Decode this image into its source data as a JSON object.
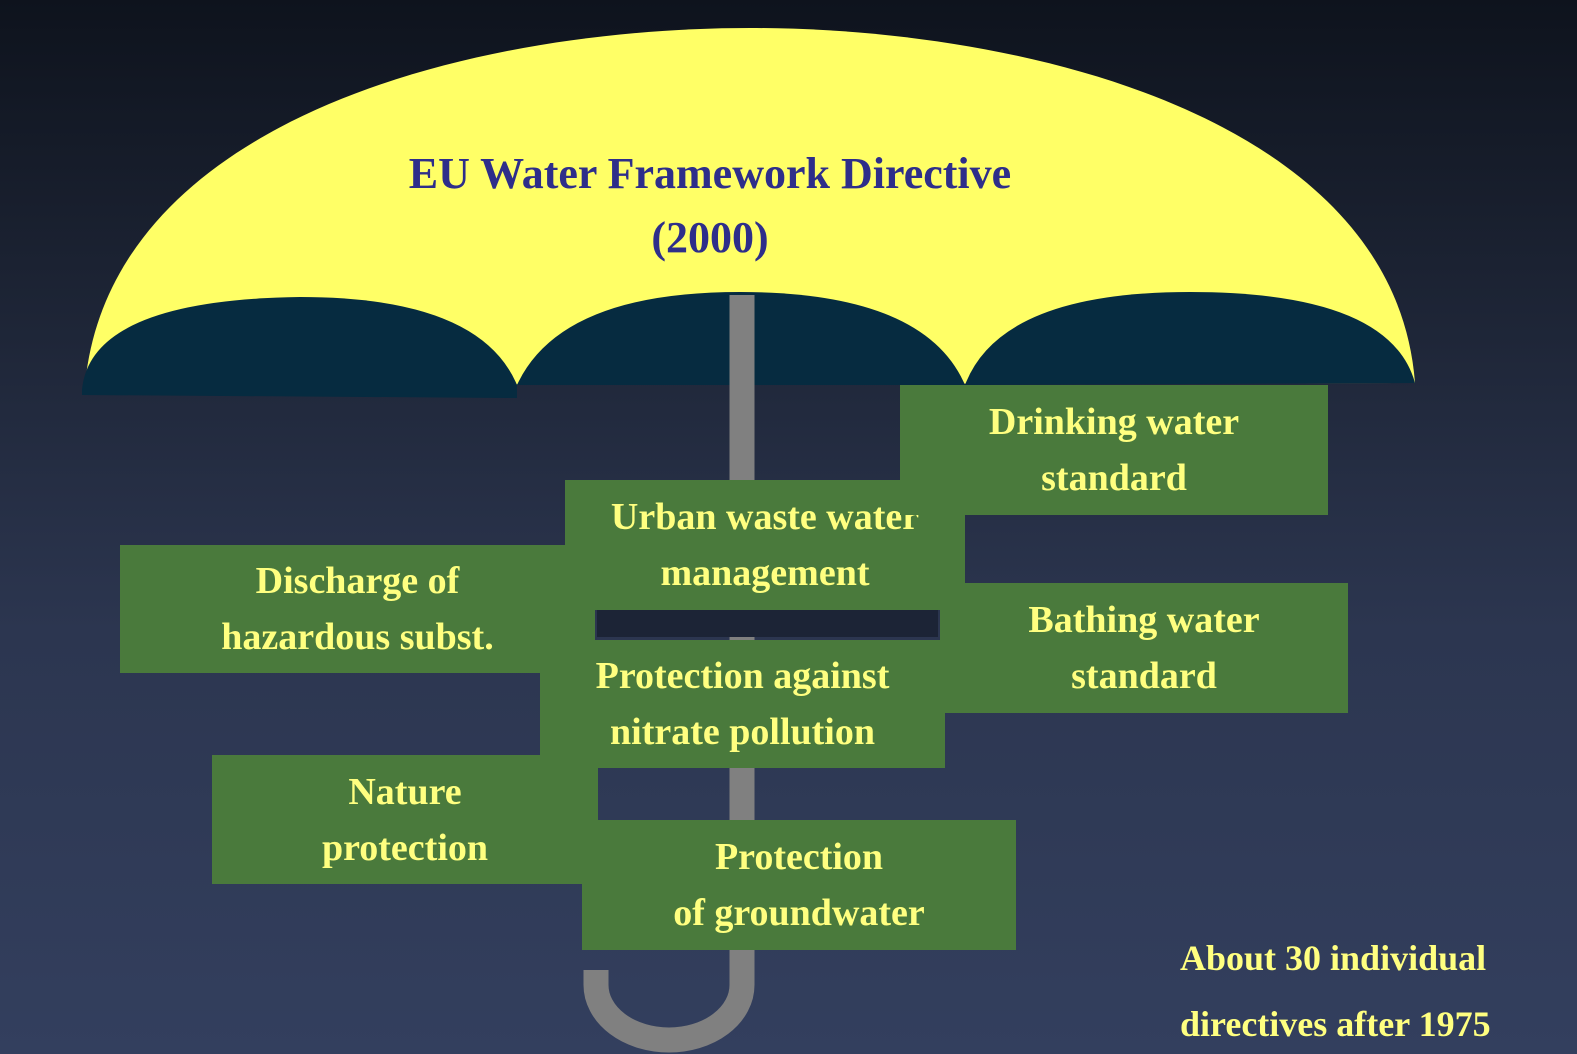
{
  "umbrella": {
    "title": "EU Water Framework Directive",
    "year": "(2000)"
  },
  "directives": [
    {
      "lines": [
        "Drinking water",
        "standard"
      ]
    },
    {
      "lines": [
        "Urban waste water",
        "management"
      ]
    },
    {
      "lines": [
        "Discharge of",
        "hazardous subst."
      ]
    },
    {
      "lines": [
        "Bathing water",
        "standard"
      ]
    },
    {
      "lines": [
        "Protection against",
        "nitrate pollution"
      ]
    },
    {
      "lines": [
        "Nature",
        "protection"
      ]
    },
    {
      "lines": [
        "Protection",
        "of groundwater"
      ]
    }
  ],
  "note": {
    "lines": [
      "About 30 individual",
      "directives after 1975"
    ]
  }
}
